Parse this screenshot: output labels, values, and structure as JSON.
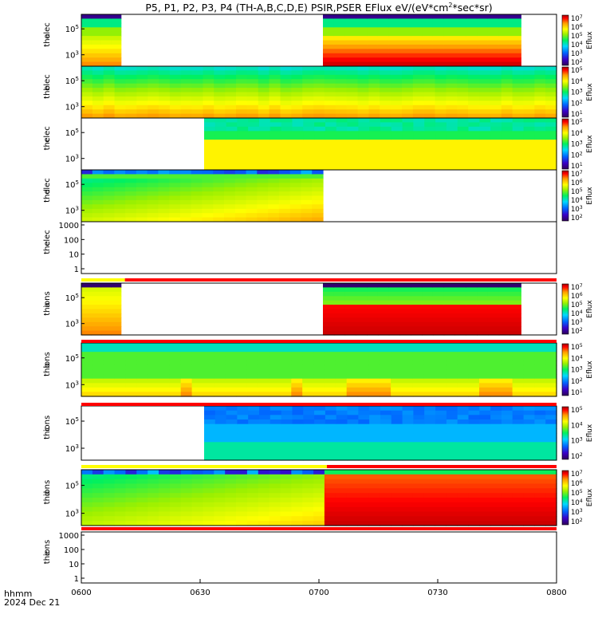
{
  "title": "P5, P1, P2, P3, P4 (TH-A,B,C,D,E) PSIR,PSER EFlux eV/(eV*cm",
  "title_sup": "2",
  "title_end": "*sec*sr)",
  "x_axis": {
    "row_label": "hhmm",
    "date_label": "2024 Dec 21",
    "ticks": [
      "0600",
      "0630",
      "0700",
      "0730",
      "0800"
    ]
  },
  "colorbar_label": "Eflux",
  "chart_data": {
    "type": "heatmap",
    "time_range": [
      "0600",
      "0800"
    ],
    "panels": [
      {
        "id": "tha-elec",
        "label_1": "tha",
        "label_2": "elec",
        "type": "heatmap",
        "y_scale": "log",
        "y_ticks": [
          "10^5",
          "10^3"
        ],
        "coverage": [
          {
            "from": "0600",
            "to": "0610"
          },
          {
            "from": "0701",
            "to": "0751"
          }
        ],
        "colorbar": {
          "ticks": [
            "10^7",
            "10^6",
            "10^5",
            "10^4",
            "10^3",
            "10^2"
          ]
        }
      },
      {
        "id": "thb-elec",
        "label_1": "thb",
        "label_2": "elec",
        "type": "heatmap",
        "y_scale": "log",
        "y_ticks": [
          "10^5",
          "10^3"
        ],
        "coverage": [
          {
            "from": "0600",
            "to": "0800"
          }
        ],
        "colorbar": {
          "ticks": [
            "10^5",
            "10^4",
            "10^3",
            "10^2",
            "10^1"
          ]
        }
      },
      {
        "id": "thc-elec",
        "label_1": "thc",
        "label_2": "elec",
        "type": "heatmap",
        "y_scale": "log",
        "y_ticks": [
          "10^5",
          "10^3"
        ],
        "coverage": [
          {
            "from": "0631",
            "to": "0800"
          }
        ],
        "colorbar": {
          "ticks": [
            "10^5",
            "10^4",
            "10^3",
            "10^2",
            "10^1"
          ]
        }
      },
      {
        "id": "thd-elec",
        "label_1": "thd",
        "label_2": "elec",
        "type": "heatmap",
        "y_scale": "log",
        "y_ticks": [
          "10^5",
          "10^3"
        ],
        "coverage": [
          {
            "from": "0600",
            "to": "0701"
          }
        ],
        "colorbar": {
          "ticks": [
            "10^7",
            "10^6",
            "10^5",
            "10^4",
            "10^3",
            "10^2"
          ]
        }
      },
      {
        "id": "the-elec",
        "label_1": "the",
        "label_2": "elec",
        "type": "empty",
        "y_scale": "log",
        "y_ticks": [
          "1000",
          "100",
          "10",
          "1"
        ],
        "ylim": [
          0.5,
          2000
        ]
      },
      {
        "id": "tha-ions",
        "label_1": "tha",
        "label_2": "ions",
        "type": "heatmap",
        "y_scale": "log",
        "y_ticks": [
          "10^5",
          "10^3"
        ],
        "coverage": [
          {
            "from": "0600",
            "to": "0610"
          },
          {
            "from": "0701",
            "to": "0751"
          }
        ],
        "colorbar": {
          "ticks": [
            "10^7",
            "10^6",
            "10^5",
            "10^4",
            "10^3",
            "10^2"
          ]
        }
      },
      {
        "id": "thb-ions",
        "label_1": "thb",
        "label_2": "ions",
        "type": "heatmap",
        "y_scale": "log",
        "y_ticks": [
          "10^5",
          "10^3"
        ],
        "coverage": [
          {
            "from": "0600",
            "to": "0800"
          }
        ],
        "colorbar": {
          "ticks": [
            "10^5",
            "10^4",
            "10^3",
            "10^2",
            "10^1"
          ]
        }
      },
      {
        "id": "thc-ions",
        "label_1": "thc",
        "label_2": "ions",
        "type": "heatmap",
        "y_scale": "log",
        "y_ticks": [
          "10^5",
          "10^3"
        ],
        "coverage": [
          {
            "from": "0631",
            "to": "0800"
          }
        ],
        "colorbar": {
          "ticks": [
            "10^5",
            "10^4",
            "10^3",
            "10^2"
          ]
        }
      },
      {
        "id": "thd-ions",
        "label_1": "thd",
        "label_2": "ions",
        "type": "heatmap",
        "y_scale": "log",
        "y_ticks": [
          "10^5",
          "10^3"
        ],
        "coverage": [
          {
            "from": "0600",
            "to": "0800"
          }
        ],
        "colorbar": {
          "ticks": [
            "10^7",
            "10^6",
            "10^5",
            "10^4",
            "10^3",
            "10^2"
          ]
        }
      },
      {
        "id": "the-ions",
        "label_1": "the",
        "label_2": "ions",
        "type": "empty",
        "y_scale": "log",
        "y_ticks": [
          "1000",
          "100",
          "10",
          "1"
        ],
        "ylim": [
          0.5,
          2000
        ]
      }
    ],
    "mode_bars": [
      {
        "segments": [
          {
            "from": "0600",
            "to": "0611",
            "color": "#ffff00"
          },
          {
            "from": "0611",
            "to": "0800",
            "color": "#ff0000"
          }
        ]
      },
      {
        "segments": [
          {
            "from": "0600",
            "to": "0800",
            "color": "#ff0000"
          }
        ]
      },
      {
        "segments": [
          {
            "from": "0600",
            "to": "0800",
            "color": "#ff0000"
          }
        ]
      },
      {
        "segments": [
          {
            "from": "0600",
            "to": "0702",
            "color": "#ffff00"
          },
          {
            "from": "0702",
            "to": "0800",
            "color": "#ff0000"
          }
        ]
      },
      {
        "segments": [
          {
            "from": "0600",
            "to": "0800",
            "color": "#ff0000"
          }
        ]
      }
    ]
  }
}
